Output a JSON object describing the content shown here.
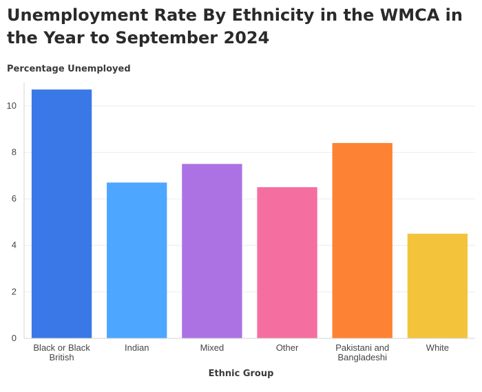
{
  "chart_data": {
    "type": "bar",
    "title": "Unemployment Rate By Ethnicity in the WMCA in the Year to September 2024",
    "ylabel": "Percentage Unemployed",
    "xlabel": "Ethnic Group",
    "categories": [
      "Black or Black British",
      "Indian",
      "Mixed",
      "Other",
      "Pakistani and Bangladeshi",
      "White"
    ],
    "category_lines": [
      [
        "Black or Black",
        "British"
      ],
      [
        "Indian"
      ],
      [
        "Mixed"
      ],
      [
        "Other"
      ],
      [
        "Pakistani and",
        "Bangladeshi"
      ],
      [
        "White"
      ]
    ],
    "values": [
      10.7,
      6.7,
      7.5,
      6.5,
      8.4,
      4.5
    ],
    "colors": [
      "#3b78e7",
      "#4da6ff",
      "#ac72e3",
      "#f46fa0",
      "#fd8233",
      "#f3c43b"
    ],
    "ylim": [
      0,
      11
    ],
    "yticks": [
      0,
      2,
      4,
      6,
      8,
      10
    ],
    "grid": true
  }
}
